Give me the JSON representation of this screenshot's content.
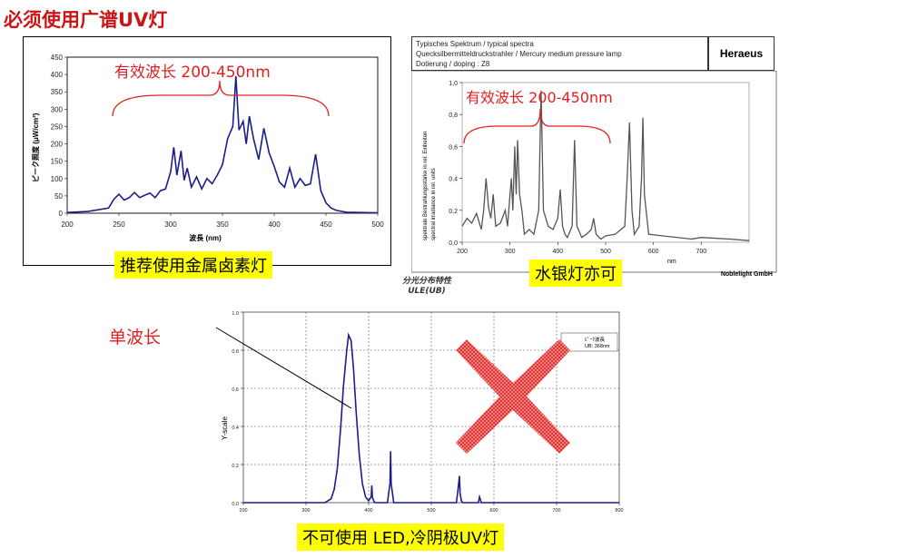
{
  "page": {
    "title": "必须使用广谱UV灯",
    "colors": {
      "accent_red": "#e02020",
      "caption_yellow": "#ffff00",
      "series_blue": "#1c1c8c",
      "series_gray": "#555555",
      "cross_red": "#e01818"
    }
  },
  "left_panel": {
    "annotation": "有效波长 200-450nm",
    "caption": "推荐使用金属卤素灯"
  },
  "right_panel": {
    "header_lines": [
      "Typisches Spektrum / typical spectra",
      "Quecksilbermitteldruckstrahler / Mercury medium pressure lamp",
      "Dotierung / doping : Z8"
    ],
    "brand": "Heraeus",
    "annotation": "有效波长 200-450nm",
    "ylabel_lines": [
      "spektrale Bestrahlungsstärke in rel. Einheiten",
      "spectral irradiance in rel. units"
    ],
    "xlabel": "nm",
    "footer": "Noblelight GmbH",
    "caption": "水银灯亦可"
  },
  "bottom_panel": {
    "title_lines": [
      "分光分布特性",
      "ULE(UB)"
    ],
    "single_wave_label": "单波长",
    "legend_lines": [
      "ﾋﾟｰｸ波長",
      "UB: 368nm"
    ],
    "ylabel": "Y-scale",
    "caption": "不可使用 LED,冷阴极UV灯",
    "cross_icon": "red-cross-icon"
  },
  "chart_data": [
    {
      "type": "line",
      "ylabel": "ピーク照度 (μW/cm²)",
      "xlabel": "波長 (nm)",
      "xlim": [
        200,
        500
      ],
      "ylim": [
        0,
        450
      ],
      "x_ticks": [
        200,
        250,
        300,
        350,
        400,
        450,
        500
      ],
      "y_ticks": [
        0,
        50,
        100,
        150,
        200,
        250,
        300,
        350,
        400,
        450
      ],
      "grid": false,
      "x": [
        200,
        220,
        240,
        245,
        250,
        255,
        260,
        265,
        270,
        275,
        280,
        285,
        290,
        295,
        300,
        303,
        306,
        310,
        313,
        316,
        320,
        325,
        330,
        335,
        340,
        345,
        350,
        355,
        360,
        363,
        366,
        370,
        373,
        376,
        380,
        385,
        390,
        395,
        400,
        405,
        410,
        415,
        420,
        425,
        430,
        435,
        440,
        445,
        450,
        455,
        460,
        470,
        500
      ],
      "y": [
        2,
        5,
        15,
        40,
        55,
        38,
        45,
        60,
        45,
        52,
        58,
        45,
        65,
        70,
        120,
        190,
        110,
        180,
        95,
        130,
        75,
        105,
        70,
        100,
        85,
        110,
        140,
        215,
        250,
        395,
        240,
        265,
        200,
        280,
        215,
        155,
        245,
        175,
        135,
        90,
        75,
        130,
        75,
        100,
        80,
        85,
        170,
        65,
        30,
        15,
        8,
        3,
        1
      ]
    },
    {
      "type": "line",
      "xlim": [
        200,
        800
      ],
      "ylim": [
        0,
        1
      ],
      "x_ticks": [
        200,
        300,
        400,
        500,
        600,
        700
      ],
      "y_ticks": [
        "0,0",
        "0,2",
        "0,4",
        "0,6",
        "0,8",
        "1,0"
      ],
      "grid": false,
      "x": [
        200,
        210,
        220,
        230,
        240,
        245,
        250,
        255,
        260,
        265,
        270,
        280,
        290,
        295,
        300,
        303,
        306,
        310,
        313,
        316,
        320,
        325,
        330,
        340,
        350,
        360,
        365,
        370,
        380,
        390,
        400,
        405,
        410,
        415,
        420,
        430,
        435,
        440,
        450,
        460,
        470,
        475,
        480,
        490,
        500,
        520,
        540,
        545,
        550,
        555,
        560,
        570,
        575,
        578,
        581,
        590,
        620,
        680,
        700,
        760,
        800
      ],
      "y": [
        0.1,
        0.15,
        0.12,
        0.18,
        0.08,
        0.2,
        0.4,
        0.22,
        0.15,
        0.3,
        0.1,
        0.12,
        0.2,
        0.1,
        0.3,
        0.4,
        0.2,
        0.6,
        0.3,
        0.64,
        0.3,
        0.2,
        0.05,
        0.08,
        0.05,
        0.2,
        0.95,
        0.2,
        0.1,
        0.08,
        0.15,
        0.33,
        0.1,
        0.05,
        0.03,
        0.1,
        0.64,
        0.1,
        0.03,
        0.05,
        0.08,
        0.15,
        0.05,
        0.02,
        0.04,
        0.05,
        0.1,
        0.4,
        0.75,
        0.2,
        0.05,
        0.1,
        0.4,
        0.78,
        0.3,
        0.05,
        0.04,
        0.02,
        0.03,
        0.02,
        0.01
      ]
    },
    {
      "type": "line",
      "ylabel": "Y-scale",
      "xlim": [
        200,
        800
      ],
      "ylim": [
        0,
        1
      ],
      "x_ticks": [
        200,
        300,
        400,
        500,
        600,
        700,
        800
      ],
      "y_ticks": [
        0.0,
        0.2,
        0.4,
        0.6,
        0.8,
        1.0
      ],
      "grid": true,
      "x": [
        200,
        330,
        340,
        345,
        350,
        355,
        360,
        365,
        368,
        372,
        376,
        380,
        385,
        390,
        395,
        400,
        404,
        405,
        406,
        408,
        410,
        412,
        420,
        430,
        434,
        435,
        436,
        440,
        540,
        542,
        545,
        546,
        548,
        550,
        560,
        575,
        577,
        580,
        600,
        800
      ],
      "y": [
        0,
        0,
        0.02,
        0.07,
        0.18,
        0.38,
        0.62,
        0.8,
        0.88,
        0.85,
        0.7,
        0.48,
        0.25,
        0.1,
        0.03,
        0.01,
        0.03,
        0.09,
        0.03,
        0.01,
        0,
        0,
        0,
        0,
        0.1,
        0.27,
        0.1,
        0,
        0,
        0.05,
        0.14,
        0.05,
        0.01,
        0,
        0,
        0,
        0.03,
        0,
        0,
        0
      ]
    }
  ]
}
